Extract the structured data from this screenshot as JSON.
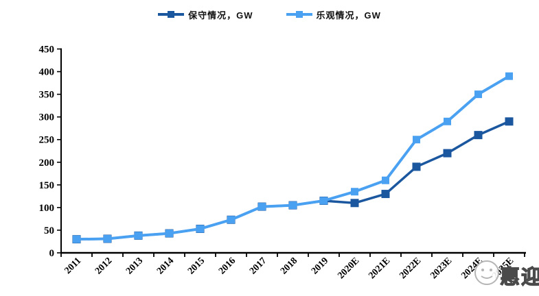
{
  "chart_data": {
    "type": "line",
    "title": "",
    "xlabel": "",
    "ylabel": "",
    "categories": [
      "2011",
      "2012",
      "2013",
      "2014",
      "2015",
      "2016",
      "2017",
      "2018",
      "2019",
      "2020E",
      "2021E",
      "2022E",
      "2023E",
      "2024E",
      "2025E"
    ],
    "series": [
      {
        "name": "保守情况，GW",
        "color": "#1b579f",
        "values": [
          30,
          31,
          38,
          43,
          53,
          73,
          102,
          105,
          115,
          110,
          130,
          190,
          220,
          260,
          290
        ]
      },
      {
        "name": "乐观情况，GW",
        "color": "#4ba1f1",
        "values": [
          30,
          31,
          38,
          43,
          53,
          73,
          102,
          105,
          115,
          135,
          160,
          250,
          290,
          350,
          390
        ]
      }
    ],
    "ylim": [
      0,
      450
    ],
    "ytick_step": 50,
    "yticks": [
      0,
      50,
      100,
      150,
      200,
      250,
      300,
      350,
      400,
      450
    ],
    "legend_position": "top-center",
    "grid": false,
    "marker": "square"
  },
  "watermark": {
    "text": "惠迎",
    "icon": "smiley-face-icon"
  },
  "colors": {
    "axis": "#000000",
    "background": "#ffffff"
  }
}
